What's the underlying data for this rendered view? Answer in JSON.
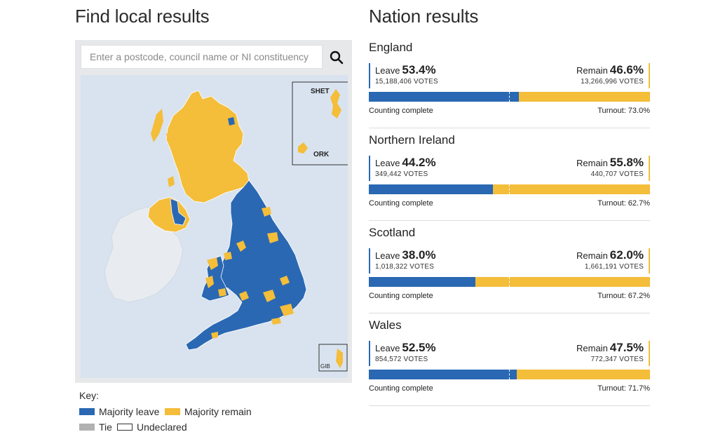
{
  "local": {
    "title": "Find local results",
    "search_placeholder": "Enter a postcode, council name or NI constituency",
    "search_icon": "search-icon",
    "map_labels": {
      "shetland": "SHET",
      "orkney": "ORK",
      "gibraltar": "GIB"
    },
    "colors": {
      "leave": "#2a68b3",
      "remain": "#f4bd3a",
      "tie": "#b1b1b1",
      "sea": "#d9e3ef",
      "ireland": "#e8ecf1"
    }
  },
  "key": {
    "title": "Key:",
    "items": [
      {
        "label": "Majority leave",
        "color": "#2a68b3"
      },
      {
        "label": "Majority remain",
        "color": "#f4bd3a"
      },
      {
        "label": "Tie",
        "color": "#b1b1b1"
      },
      {
        "label": "Undeclared",
        "color": "#ffffff"
      }
    ]
  },
  "nations_title": "Nation results",
  "nations": [
    {
      "name": "England",
      "leave_label": "Leave",
      "leave_pct": "53.4%",
      "leave_votes": "15,188,406 VOTES",
      "remain_label": "Remain",
      "remain_pct": "46.6%",
      "remain_votes": "13,266,996 VOTES",
      "leave_share": 53.4,
      "status": "Counting complete",
      "turnout": "Turnout: 73.0%"
    },
    {
      "name": "Northern Ireland",
      "leave_label": "Leave",
      "leave_pct": "44.2%",
      "leave_votes": "349,442 VOTES",
      "remain_label": "Remain",
      "remain_pct": "55.8%",
      "remain_votes": "440,707 VOTES",
      "leave_share": 44.2,
      "status": "Counting complete",
      "turnout": "Turnout: 62.7%"
    },
    {
      "name": "Scotland",
      "leave_label": "Leave",
      "leave_pct": "38.0%",
      "leave_votes": "1,018,322 VOTES",
      "remain_label": "Remain",
      "remain_pct": "62.0%",
      "remain_votes": "1,661,191 VOTES",
      "leave_share": 38.0,
      "status": "Counting complete",
      "turnout": "Turnout: 67.2%"
    },
    {
      "name": "Wales",
      "leave_label": "Leave",
      "leave_pct": "52.5%",
      "leave_votes": "854,572 VOTES",
      "remain_label": "Remain",
      "remain_pct": "47.5%",
      "remain_votes": "772,347 VOTES",
      "leave_share": 52.5,
      "status": "Counting complete",
      "turnout": "Turnout: 71.7%"
    }
  ]
}
